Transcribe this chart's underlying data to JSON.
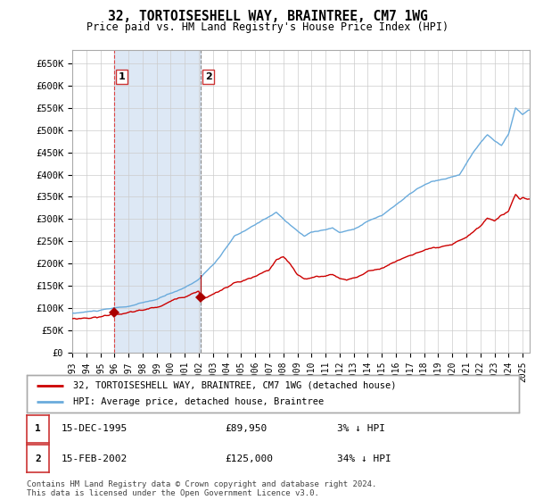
{
  "title": "32, TORTOISESHELL WAY, BRAINTREE, CM7 1WG",
  "subtitle": "Price paid vs. HM Land Registry's House Price Index (HPI)",
  "ylabel_ticks": [
    "£0",
    "£50K",
    "£100K",
    "£150K",
    "£200K",
    "£250K",
    "£300K",
    "£350K",
    "£400K",
    "£450K",
    "£500K",
    "£550K",
    "£600K",
    "£650K"
  ],
  "ytick_values": [
    0,
    50000,
    100000,
    150000,
    200000,
    250000,
    300000,
    350000,
    400000,
    450000,
    500000,
    550000,
    600000,
    650000
  ],
  "ylim": [
    0,
    680000
  ],
  "hpi_color": "#6aabdc",
  "price_color": "#CC0000",
  "marker_color": "#AA0000",
  "bg_color": "#FFFFFF",
  "grid_color": "#CCCCCC",
  "hatch_color": "#E0E0E0",
  "shade_color": "#dde8f5",
  "vline_color1": "#DD4444",
  "vline_color2": "#888888",
  "legend_label_price": "32, TORTOISESHELL WAY, BRAINTREE, CM7 1WG (detached house)",
  "legend_label_hpi": "HPI: Average price, detached house, Braintree",
  "transaction1_date": "15-DEC-1995",
  "transaction1_price": "£89,950",
  "transaction1_hpi": "3% ↓ HPI",
  "transaction1_year": 1995.958,
  "transaction1_value": 89950,
  "transaction2_date": "15-FEB-2002",
  "transaction2_price": "£125,000",
  "transaction2_hpi": "34% ↓ HPI",
  "transaction2_year": 2002.125,
  "transaction2_value": 125000,
  "footer": "Contains HM Land Registry data © Crown copyright and database right 2024.\nThis data is licensed under the Open Government Licence v3.0.",
  "xmin": 1993.0,
  "xmax": 2025.5
}
